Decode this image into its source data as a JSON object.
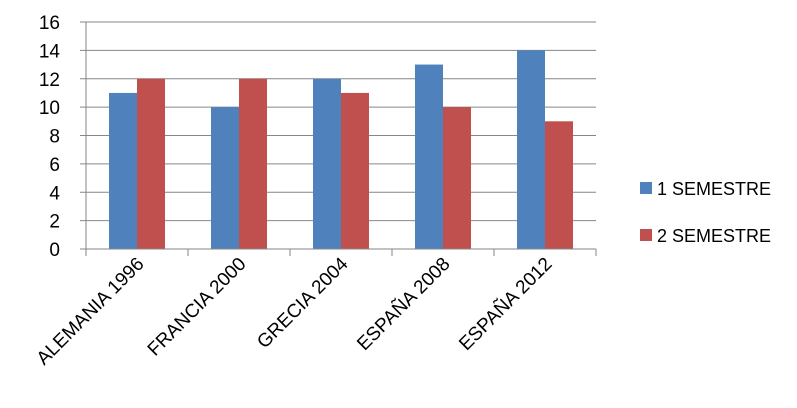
{
  "chart_data": {
    "type": "bar",
    "title": "",
    "xlabel": "",
    "ylabel": "",
    "categories": [
      "ALEMANIA 1996",
      "FRANCIA 2000",
      "GRECIA 2004",
      "ESPAÑA 2008",
      "ESPAÑA 2012"
    ],
    "series": [
      {
        "name": "1 SEMESTRE",
        "values": [
          11,
          10,
          12,
          13,
          14
        ],
        "color": "#4F81BD"
      },
      {
        "name": "2 SEMESTRE",
        "values": [
          12,
          12,
          11,
          10,
          9
        ],
        "color": "#C0504D"
      }
    ],
    "ylim": [
      0,
      16
    ],
    "yticks": [
      0,
      2,
      4,
      6,
      8,
      10,
      12,
      14,
      16
    ],
    "grid": true,
    "legend_position": "right"
  }
}
